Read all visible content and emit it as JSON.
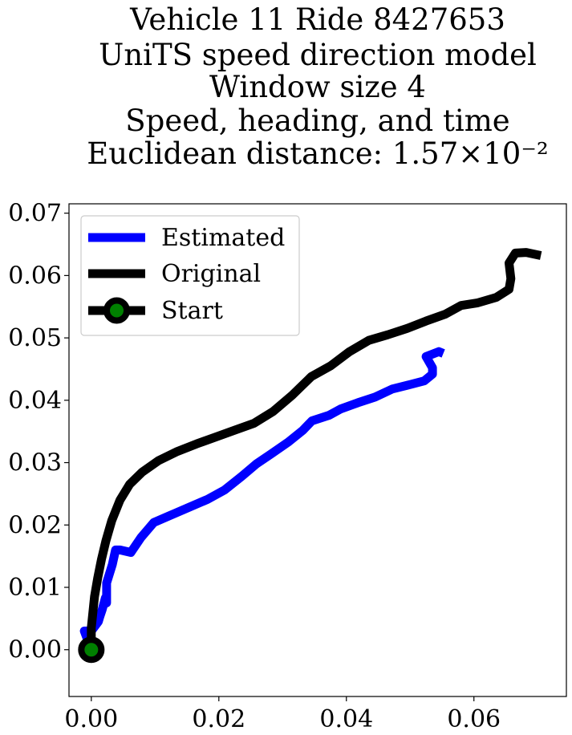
{
  "chart_data": {
    "type": "line",
    "title_lines": [
      "Vehicle 11 Ride 8427653",
      "UniTS speed direction model",
      "Window size 4",
      "Speed, heading, and time",
      "Euclidean distance: 1.57×10⁻²"
    ],
    "xlabel": "",
    "ylabel": "",
    "xlim": [
      -0.0035,
      0.0745
    ],
    "ylim": [
      -0.0075,
      0.0715
    ],
    "xticks": [
      "0.00",
      "0.02",
      "0.04",
      "0.06"
    ],
    "xtick_values": [
      0.0,
      0.02,
      0.04,
      0.06
    ],
    "yticks": [
      "0.00",
      "0.01",
      "0.02",
      "0.03",
      "0.04",
      "0.05",
      "0.06",
      "0.07"
    ],
    "ytick_values": [
      0.0,
      0.01,
      0.02,
      0.03,
      0.04,
      0.05,
      0.06,
      0.07
    ],
    "grid": false,
    "legend_position": "upper-left",
    "series": [
      {
        "name": "Estimated",
        "color": "#0000ff",
        "points": [
          [
            0.0,
            0.0
          ],
          [
            -0.0011,
            0.003
          ],
          [
            0.0,
            0.003
          ],
          [
            0.0011,
            0.0045
          ],
          [
            0.0013,
            0.0052
          ],
          [
            0.0017,
            0.0064
          ],
          [
            0.002,
            0.0075
          ],
          [
            0.0022,
            0.0083
          ],
          [
            0.0024,
            0.0075
          ],
          [
            0.0024,
            0.0107
          ],
          [
            0.0033,
            0.0137
          ],
          [
            0.0038,
            0.016
          ],
          [
            0.0045,
            0.016
          ],
          [
            0.0062,
            0.0156
          ],
          [
            0.0078,
            0.018
          ],
          [
            0.0098,
            0.0204
          ],
          [
            0.0123,
            0.0215
          ],
          [
            0.015,
            0.0227
          ],
          [
            0.0182,
            0.0241
          ],
          [
            0.0209,
            0.0256
          ],
          [
            0.0236,
            0.0278
          ],
          [
            0.0259,
            0.0298
          ],
          [
            0.0282,
            0.0314
          ],
          [
            0.0309,
            0.0333
          ],
          [
            0.0332,
            0.0352
          ],
          [
            0.0346,
            0.0367
          ],
          [
            0.0373,
            0.0376
          ],
          [
            0.0391,
            0.0386
          ],
          [
            0.0418,
            0.0396
          ],
          [
            0.0445,
            0.0405
          ],
          [
            0.0472,
            0.0418
          ],
          [
            0.0499,
            0.0425
          ],
          [
            0.0522,
            0.0431
          ],
          [
            0.0535,
            0.0442
          ],
          [
            0.0535,
            0.0452
          ],
          [
            0.0525,
            0.047
          ],
          [
            0.0545,
            0.0478
          ],
          [
            0.0552,
            0.0475
          ]
        ]
      },
      {
        "name": "Original",
        "color": "#000000",
        "points": [
          [
            0.0,
            0.0
          ],
          [
            0.0,
            0.0035
          ],
          [
            0.0002,
            0.0055
          ],
          [
            0.0005,
            0.0085
          ],
          [
            0.001,
            0.0115
          ],
          [
            0.0016,
            0.0145
          ],
          [
            0.0023,
            0.0175
          ],
          [
            0.0032,
            0.0207
          ],
          [
            0.0045,
            0.024
          ],
          [
            0.006,
            0.0265
          ],
          [
            0.008,
            0.0285
          ],
          [
            0.0105,
            0.0303
          ],
          [
            0.0135,
            0.0318
          ],
          [
            0.0165,
            0.033
          ],
          [
            0.0195,
            0.0341
          ],
          [
            0.0225,
            0.0352
          ],
          [
            0.0255,
            0.0363
          ],
          [
            0.0285,
            0.0382
          ],
          [
            0.0315,
            0.0408
          ],
          [
            0.0345,
            0.0438
          ],
          [
            0.0375,
            0.0455
          ],
          [
            0.0405,
            0.0478
          ],
          [
            0.0435,
            0.0496
          ],
          [
            0.0465,
            0.0505
          ],
          [
            0.0495,
            0.0515
          ],
          [
            0.0525,
            0.0527
          ],
          [
            0.0555,
            0.0538
          ],
          [
            0.058,
            0.0552
          ],
          [
            0.0605,
            0.0556
          ],
          [
            0.0635,
            0.0565
          ],
          [
            0.0655,
            0.0578
          ],
          [
            0.0658,
            0.0595
          ],
          [
            0.0655,
            0.062
          ],
          [
            0.0665,
            0.0636
          ],
          [
            0.0682,
            0.0637
          ],
          [
            0.0705,
            0.0632
          ]
        ]
      }
    ],
    "start": {
      "name": "Start",
      "point": [
        0.0,
        0.0
      ],
      "marker_face": "#008000",
      "marker_edge": "#000000"
    }
  }
}
